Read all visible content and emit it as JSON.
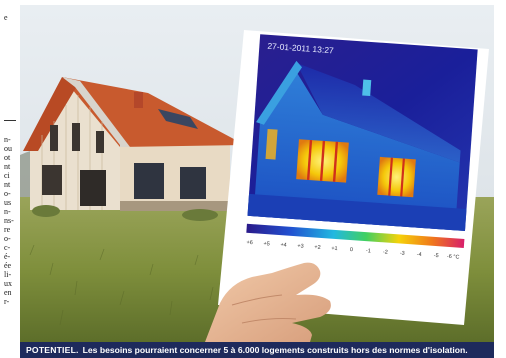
{
  "sidebar": {
    "fragments": [
      "e",
      "n-",
      "ou",
      "ot",
      "nt",
      "ci",
      "nt",
      "o-",
      "us",
      "n-",
      "ns-",
      "re",
      "o-",
      "c-",
      "é-",
      "ée",
      "li-",
      "ux",
      "en",
      "r-"
    ]
  },
  "photo": {
    "alt": "House with thermal image held in front",
    "thermal_timestamp": "27-01-2011   13:27",
    "scale_labels": [
      "+6",
      "+5",
      "+4",
      "+3",
      "+2",
      "+1",
      "0",
      "-1",
      "-2",
      "-3",
      "-4",
      "-5",
      "-6 °C"
    ]
  },
  "caption": {
    "kicker": "POTENTIEL.",
    "text": "Les besoins pourraient concerner 5 à 6.000 logements construits hors des normes d'isolation."
  },
  "colors": {
    "caption_bg": "#1e2a5c",
    "roof": "#c85a2e",
    "thermal_cold": "#1a1f9a",
    "thermal_hot": "#f5d20a"
  }
}
